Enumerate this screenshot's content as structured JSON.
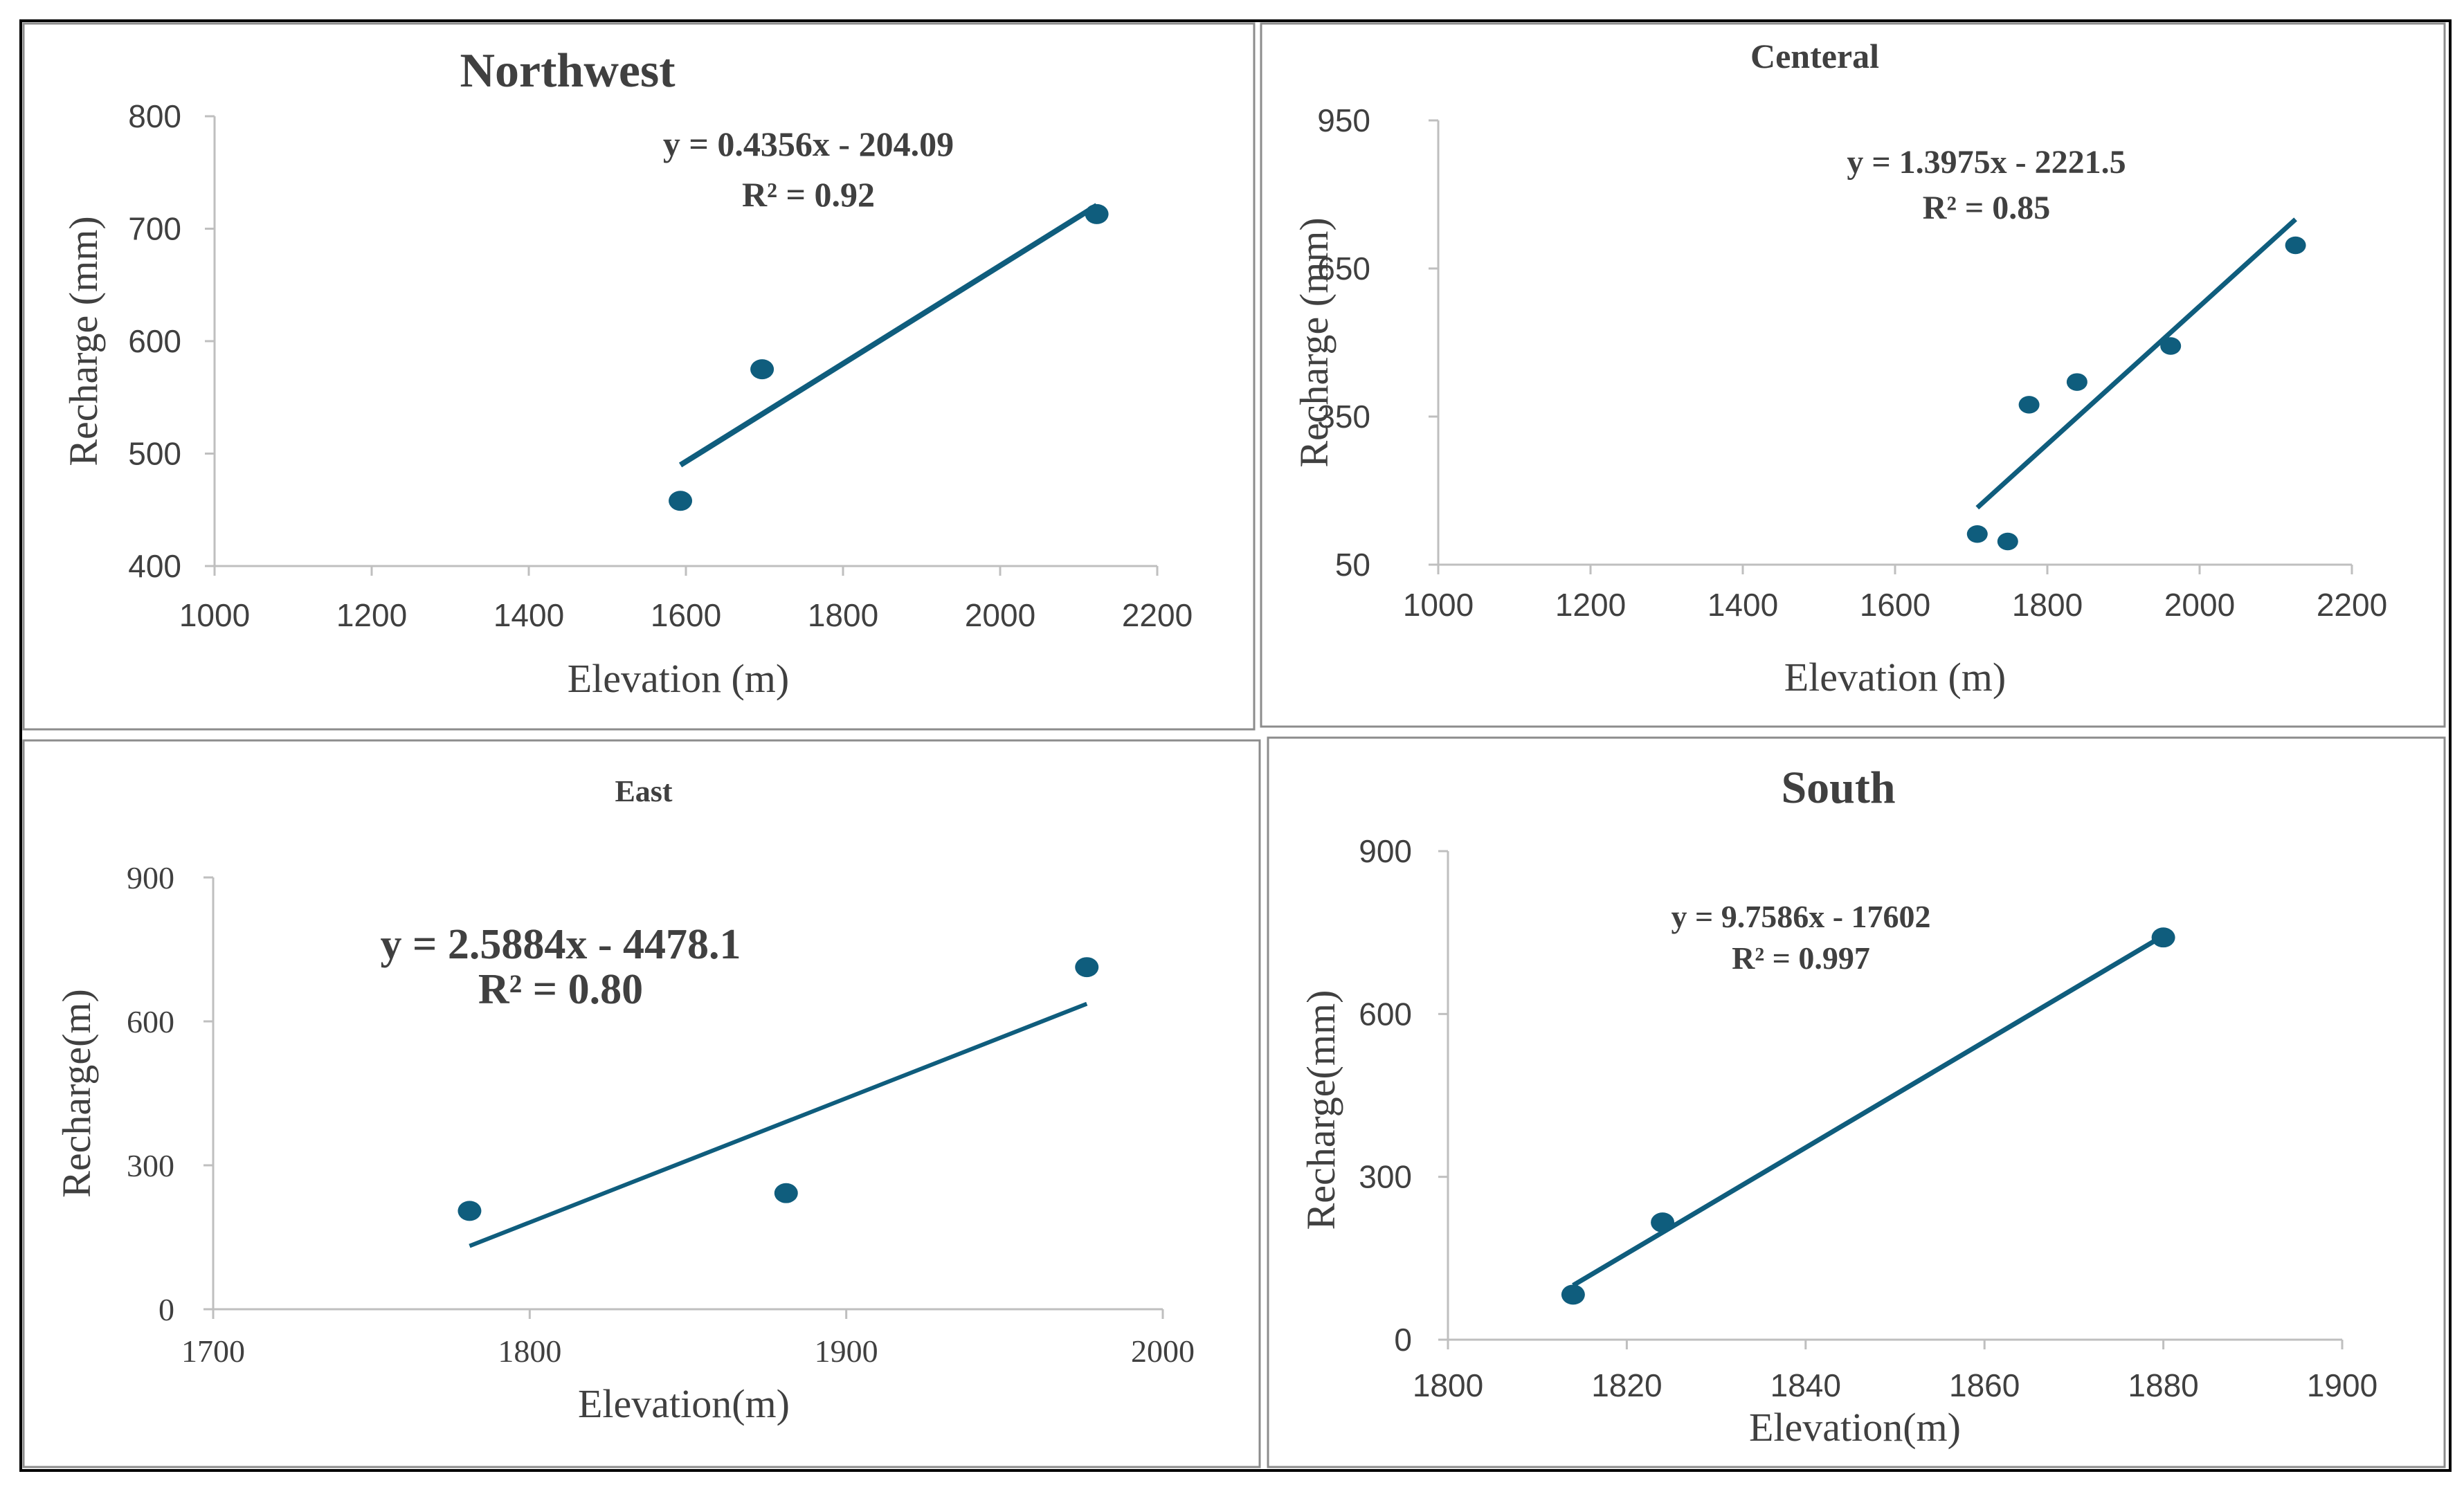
{
  "colors": {
    "series": "#0f5d7d",
    "axis": "#bfbfbf",
    "text": "#404040",
    "frame": "#000000",
    "panel_border": "#8c8c8c"
  },
  "chart_data": [
    {
      "type": "scatter",
      "title": "Northwest",
      "xlabel": "Elevation (m)",
      "ylabel": "Recharge (mm)",
      "xlim": [
        1000,
        2200
      ],
      "ylim": [
        400,
        800
      ],
      "x_ticks": [
        "1000",
        "1200",
        "1400",
        "1600",
        "1800",
        "2000",
        "2200"
      ],
      "y_ticks": [
        "400",
        "500",
        "600",
        "700",
        "800"
      ],
      "x": [
        1593,
        1697,
        2123
      ],
      "y": [
        458,
        575,
        713
      ],
      "trendline": {
        "slope": 0.4356,
        "intercept": -204.09,
        "x_range": [
          1593,
          2123
        ]
      },
      "equation": "y = 0.4356x - 204.09",
      "r2": "R² = 0.92"
    },
    {
      "type": "scatter",
      "title": "Centeral",
      "xlabel": "Elevation (m)",
      "ylabel": "Recharge (mm)",
      "xlim": [
        1000,
        2200
      ],
      "ylim": [
        50,
        950
      ],
      "x_ticks": [
        "1000",
        "1200",
        "1400",
        "1600",
        "1800",
        "2000",
        "2200"
      ],
      "y_ticks": [
        "50",
        "350",
        "650",
        "950"
      ],
      "x": [
        1708,
        1748,
        1776,
        1839,
        1962,
        2126
      ],
      "y": [
        112,
        97,
        374,
        420,
        493,
        697
      ],
      "trendline": {
        "slope": 1.3975,
        "intercept": -2221.5,
        "x_range": [
          1708,
          2126
        ]
      },
      "equation": "y = 1.3975x - 2221.5",
      "r2": "R² = 0.85"
    },
    {
      "type": "scatter",
      "title": "East",
      "xlabel": "Elevation(m)",
      "ylabel": "Recharge(m)",
      "xlim": [
        1700,
        2000
      ],
      "ylim": [
        0,
        900
      ],
      "x_ticks": [
        "1700",
        "1800",
        "1900",
        "2000"
      ],
      "y_ticks": [
        "0",
        "300",
        "600",
        "900"
      ],
      "x": [
        1781,
        1881,
        1976
      ],
      "y": [
        205,
        242,
        713
      ],
      "trendline": {
        "slope": 2.5884,
        "intercept": -4478.1,
        "x_range": [
          1781,
          1976
        ]
      },
      "equation": "y = 2.5884x - 4478.1",
      "r2": "R² = 0.80"
    },
    {
      "type": "scatter",
      "title": "South",
      "xlabel": "Elevation(m)",
      "ylabel": "Recharge(mm)",
      "xlim": [
        1800,
        1900
      ],
      "ylim": [
        0,
        900
      ],
      "x_ticks": [
        "1800",
        "1820",
        "1840",
        "1860",
        "1880",
        "1900"
      ],
      "y_ticks": [
        "0",
        "300",
        "600",
        "900"
      ],
      "x": [
        1814,
        1824,
        1880
      ],
      "y": [
        83,
        216,
        741
      ],
      "trendline": {
        "slope": 9.7586,
        "intercept": -17602,
        "x_range": [
          1814,
          1880
        ]
      },
      "equation": "y = 9.7586x - 17602",
      "r2": "R² = 0.997"
    }
  ]
}
